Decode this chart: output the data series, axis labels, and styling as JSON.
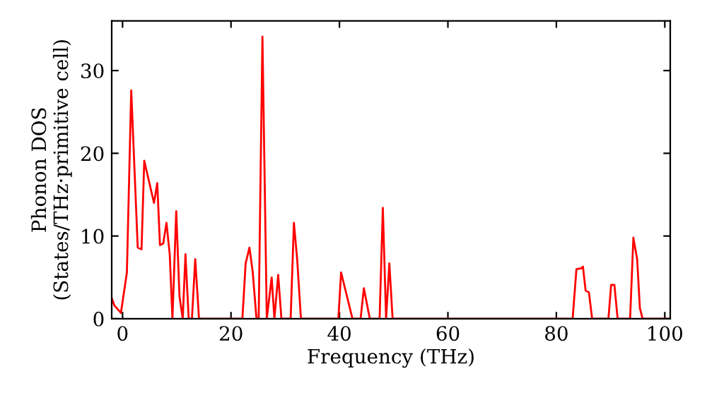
{
  "chart_data": {
    "type": "line",
    "xlabel": "Frequency (THz)",
    "ylabel": "Phonon DOS\n(States/THz·primitive cell)",
    "xlim": [
      -2,
      101
    ],
    "ylim": [
      0,
      36
    ],
    "xticks": [
      0,
      20,
      40,
      60,
      80,
      100
    ],
    "yticks": [
      0,
      10,
      20,
      30
    ],
    "grid": false,
    "legend": false,
    "series": [
      {
        "color": "#ff0000",
        "x": [
          -2,
          -1.5,
          -0.3,
          0.8,
          1.6,
          2.8,
          3.5,
          4.0,
          5.8,
          6.4,
          6.9,
          7.5,
          8.1,
          8.7,
          9.2,
          9.9,
          10.5,
          11.1,
          11.6,
          12.2,
          12.8,
          13.4,
          14.1,
          22.1,
          22.7,
          23.4,
          24.0,
          24.7,
          25.1,
          25.8,
          26.6,
          27.5,
          28.0,
          28.7,
          29.3,
          31.0,
          31.6,
          32.2,
          32.9,
          39.8,
          40.3,
          42.4,
          43.9,
          44.5,
          45.6,
          47.4,
          48.0,
          48.6,
          49.2,
          49.8,
          83.0,
          83.7,
          84.6,
          84.9,
          85.4,
          86.0,
          86.6,
          89.6,
          90.1,
          90.7,
          91.3,
          93.6,
          94.2,
          94.9,
          95.4,
          95.9,
          101
        ],
        "values": [
          2.5,
          1.6,
          0.7,
          5.6,
          27.6,
          8.6,
          8.4,
          19.1,
          14.0,
          16.4,
          8.9,
          9.1,
          11.6,
          7.8,
          0,
          13.0,
          2.7,
          0,
          7.8,
          0,
          0,
          7.2,
          0,
          0,
          6.7,
          8.6,
          5.7,
          0,
          0,
          34.1,
          0,
          5.0,
          0,
          5.3,
          0,
          0,
          11.6,
          7.2,
          0,
          0,
          5.6,
          0,
          0,
          3.7,
          0,
          0,
          13.4,
          0,
          6.7,
          0,
          0,
          6.0,
          6.1,
          6.3,
          3.4,
          3.2,
          0,
          0,
          4.1,
          4.1,
          0,
          0,
          9.8,
          7.2,
          1.3,
          0,
          0
        ]
      }
    ]
  }
}
